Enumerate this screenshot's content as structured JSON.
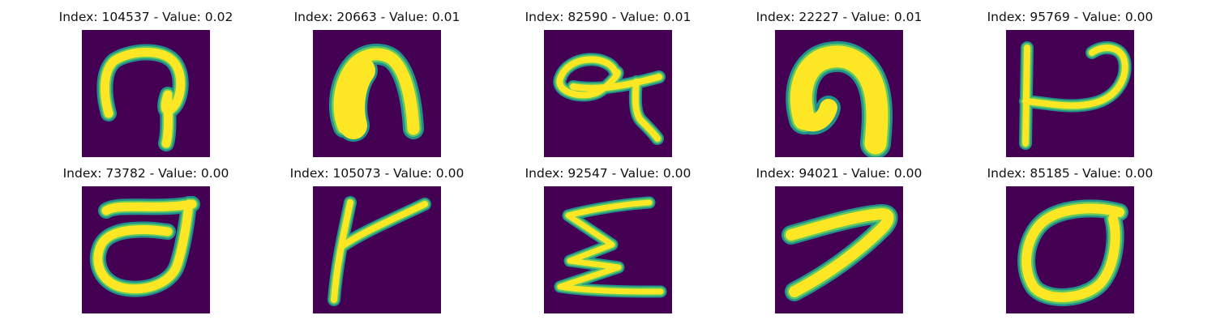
{
  "colors": {
    "background": "#440154",
    "edge": "#21918c",
    "glow": "#5ec962",
    "foreground": "#fde725"
  },
  "panels": [
    {
      "title": "Index: 104537 - Value: 0.02",
      "glyph": "glyph-104537"
    },
    {
      "title": "Index: 20663 - Value: 0.01",
      "glyph": "glyph-20663"
    },
    {
      "title": "Index: 82590 - Value: 0.01",
      "glyph": "glyph-82590"
    },
    {
      "title": "Index: 22227 - Value: 0.01",
      "glyph": "glyph-22227"
    },
    {
      "title": "Index: 95769 - Value: 0.00",
      "glyph": "glyph-95769"
    },
    {
      "title": "Index: 73782 - Value: 0.00",
      "glyph": "glyph-73782"
    },
    {
      "title": "Index: 105073 - Value: 0.00",
      "glyph": "glyph-105073"
    },
    {
      "title": "Index: 92547 - Value: 0.00",
      "glyph": "glyph-92547"
    },
    {
      "title": "Index: 94021 - Value: 0.00",
      "glyph": "glyph-94021"
    },
    {
      "title": "Index: 85185 - Value: 0.00",
      "glyph": "glyph-85185"
    }
  ]
}
